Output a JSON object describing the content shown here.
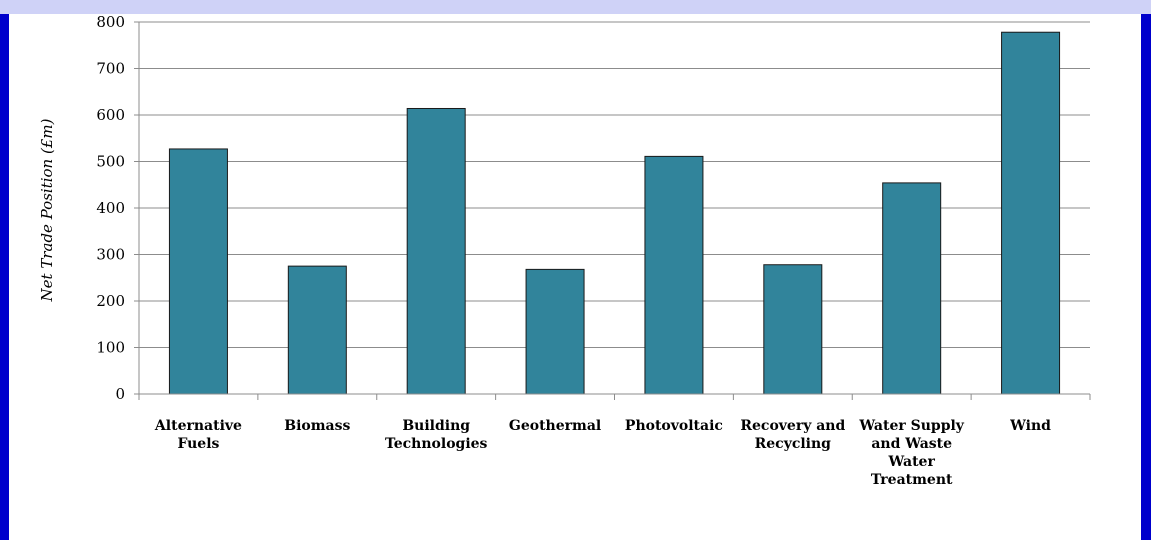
{
  "colors": {
    "window_frame": "#0000cc",
    "top_band": "#cfd2f7",
    "panel": "#ffffff",
    "bar_fill": "#31849b",
    "bar_stroke": "#1a1a1a",
    "gridline": "#8c8c8c"
  },
  "chart_data": {
    "type": "bar",
    "title": "",
    "xlabel": "",
    "ylabel": "Net Trade Position (£m)",
    "ylim": [
      0,
      800
    ],
    "yticks": [
      0,
      100,
      200,
      300,
      400,
      500,
      600,
      700,
      800
    ],
    "grid": true,
    "categories": [
      [
        "Alternative",
        "Fuels"
      ],
      [
        "Biomass"
      ],
      [
        "Building",
        "Technologies"
      ],
      [
        "Geothermal"
      ],
      [
        "Photovoltaic"
      ],
      [
        "Recovery and",
        "Recycling"
      ],
      [
        "Water Supply",
        "and Waste",
        "Water",
        "Treatment"
      ],
      [
        "Wind"
      ]
    ],
    "values": [
      527,
      275,
      614,
      268,
      511,
      278,
      454,
      778
    ]
  }
}
